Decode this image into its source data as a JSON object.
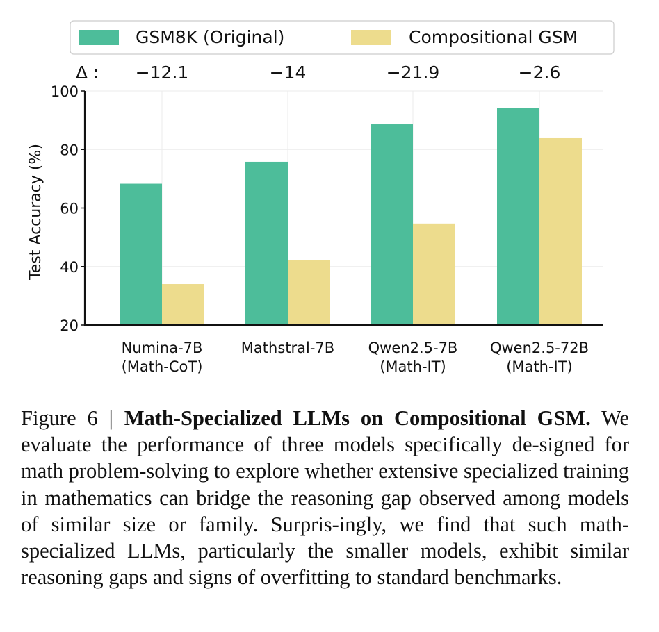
{
  "chart_data": {
    "type": "bar",
    "categories": [
      [
        "Numina-7B",
        "(Math-CoT)"
      ],
      [
        "Mathstral-7B"
      ],
      [
        "Qwen2.5-7B",
        "(Math-IT)"
      ],
      [
        "Qwen2.5-72B",
        "(Math-IT)"
      ]
    ],
    "series": [
      {
        "name": "GSM8K (Original)",
        "color": "#4dbd9a",
        "values": [
          68.3,
          75.8,
          88.6,
          94.3
        ]
      },
      {
        "name": "Compositional GSM",
        "color": "#eddc8d",
        "values": [
          34.0,
          42.3,
          54.7,
          84.1
        ]
      }
    ],
    "delta_label": "Δ :",
    "deltas": [
      "−12.1",
      "−14",
      "−21.9",
      "−2.6"
    ],
    "ylabel": "Test Accuracy (%)",
    "xlabel": "",
    "ylim": [
      20,
      100
    ],
    "yticks": [
      "20",
      "40",
      "60",
      "80",
      "100"
    ],
    "grid": true,
    "legend_position": "top-center"
  },
  "caption": {
    "prefix": "Figure 6 | ",
    "title": "Math-Specialized LLMs on Compositional GSM.",
    "body": " We evaluate the performance of three models specifically de-signed for math problem-solving to explore whether extensive specialized training in mathematics can bridge the reasoning gap observed among models of similar size or family. Surpris-ingly, we find that such math-specialized LLMs, particularly the smaller models, exhibit similar reasoning gaps and signs of overfitting to standard benchmarks."
  }
}
